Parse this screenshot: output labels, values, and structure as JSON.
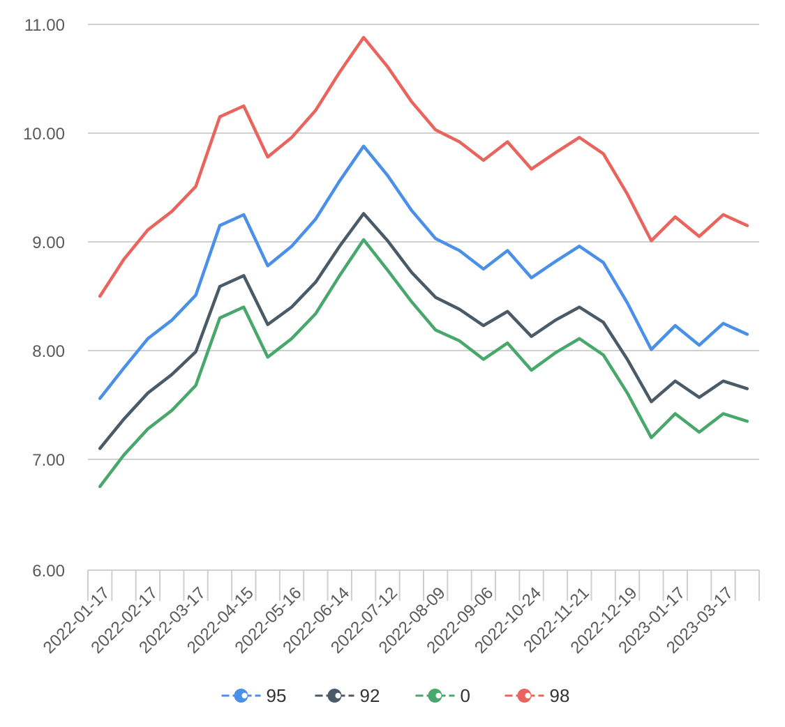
{
  "chart_data": {
    "type": "line",
    "title": "",
    "xlabel": "",
    "ylabel": "",
    "ylim": [
      6,
      11
    ],
    "grid": true,
    "legend_placement": "bottom-center",
    "y_ticks": [
      "11.00",
      "10.00",
      "9.00",
      "8.00",
      "7.00",
      "6.00"
    ],
    "x_tick_labels": [
      "2022-01-17",
      "2022-02-17",
      "2022-03-17",
      "2022-04-15",
      "2022-05-16",
      "2022-06-14",
      "2022-07-12",
      "2022-08-09",
      "2022-09-06",
      "2022-10-24",
      "2022-11-21",
      "2022-12-19",
      "2023-01-17",
      "2023-03-17"
    ],
    "series": [
      {
        "name": "95",
        "color": "#4a8fe8",
        "values": [
          7.56,
          7.84,
          8.11,
          8.28,
          8.51,
          9.15,
          9.25,
          8.78,
          8.96,
          9.21,
          9.56,
          9.88,
          9.61,
          9.29,
          9.03,
          8.92,
          8.75,
          8.92,
          8.67,
          8.82,
          8.96,
          8.81,
          8.44,
          8.01,
          8.23,
          8.05,
          8.25,
          8.15
        ]
      },
      {
        "name": "92",
        "color": "#4b5a67",
        "values": [
          7.1,
          7.37,
          7.61,
          7.78,
          7.99,
          8.59,
          8.69,
          8.24,
          8.4,
          8.63,
          8.96,
          9.26,
          9.01,
          8.72,
          8.49,
          8.38,
          8.23,
          8.36,
          8.13,
          8.28,
          8.4,
          8.26,
          7.92,
          7.53,
          7.72,
          7.57,
          7.72,
          7.65
        ]
      },
      {
        "name": "0",
        "color": "#48a76a",
        "values": [
          6.75,
          7.04,
          7.28,
          7.45,
          7.68,
          8.3,
          8.4,
          7.94,
          8.11,
          8.34,
          8.69,
          9.02,
          8.74,
          8.45,
          8.19,
          8.09,
          7.92,
          8.07,
          7.82,
          7.98,
          8.11,
          7.96,
          7.61,
          7.2,
          7.42,
          7.25,
          7.42,
          7.35
        ]
      },
      {
        "name": "98",
        "color": "#e8645c",
        "values": [
          8.5,
          8.84,
          9.11,
          9.28,
          9.51,
          10.15,
          10.25,
          9.78,
          9.96,
          10.21,
          10.56,
          10.88,
          10.61,
          10.29,
          10.03,
          9.92,
          9.75,
          9.92,
          9.67,
          9.82,
          9.96,
          9.81,
          9.44,
          9.01,
          9.23,
          9.05,
          9.25,
          9.15
        ]
      }
    ]
  }
}
